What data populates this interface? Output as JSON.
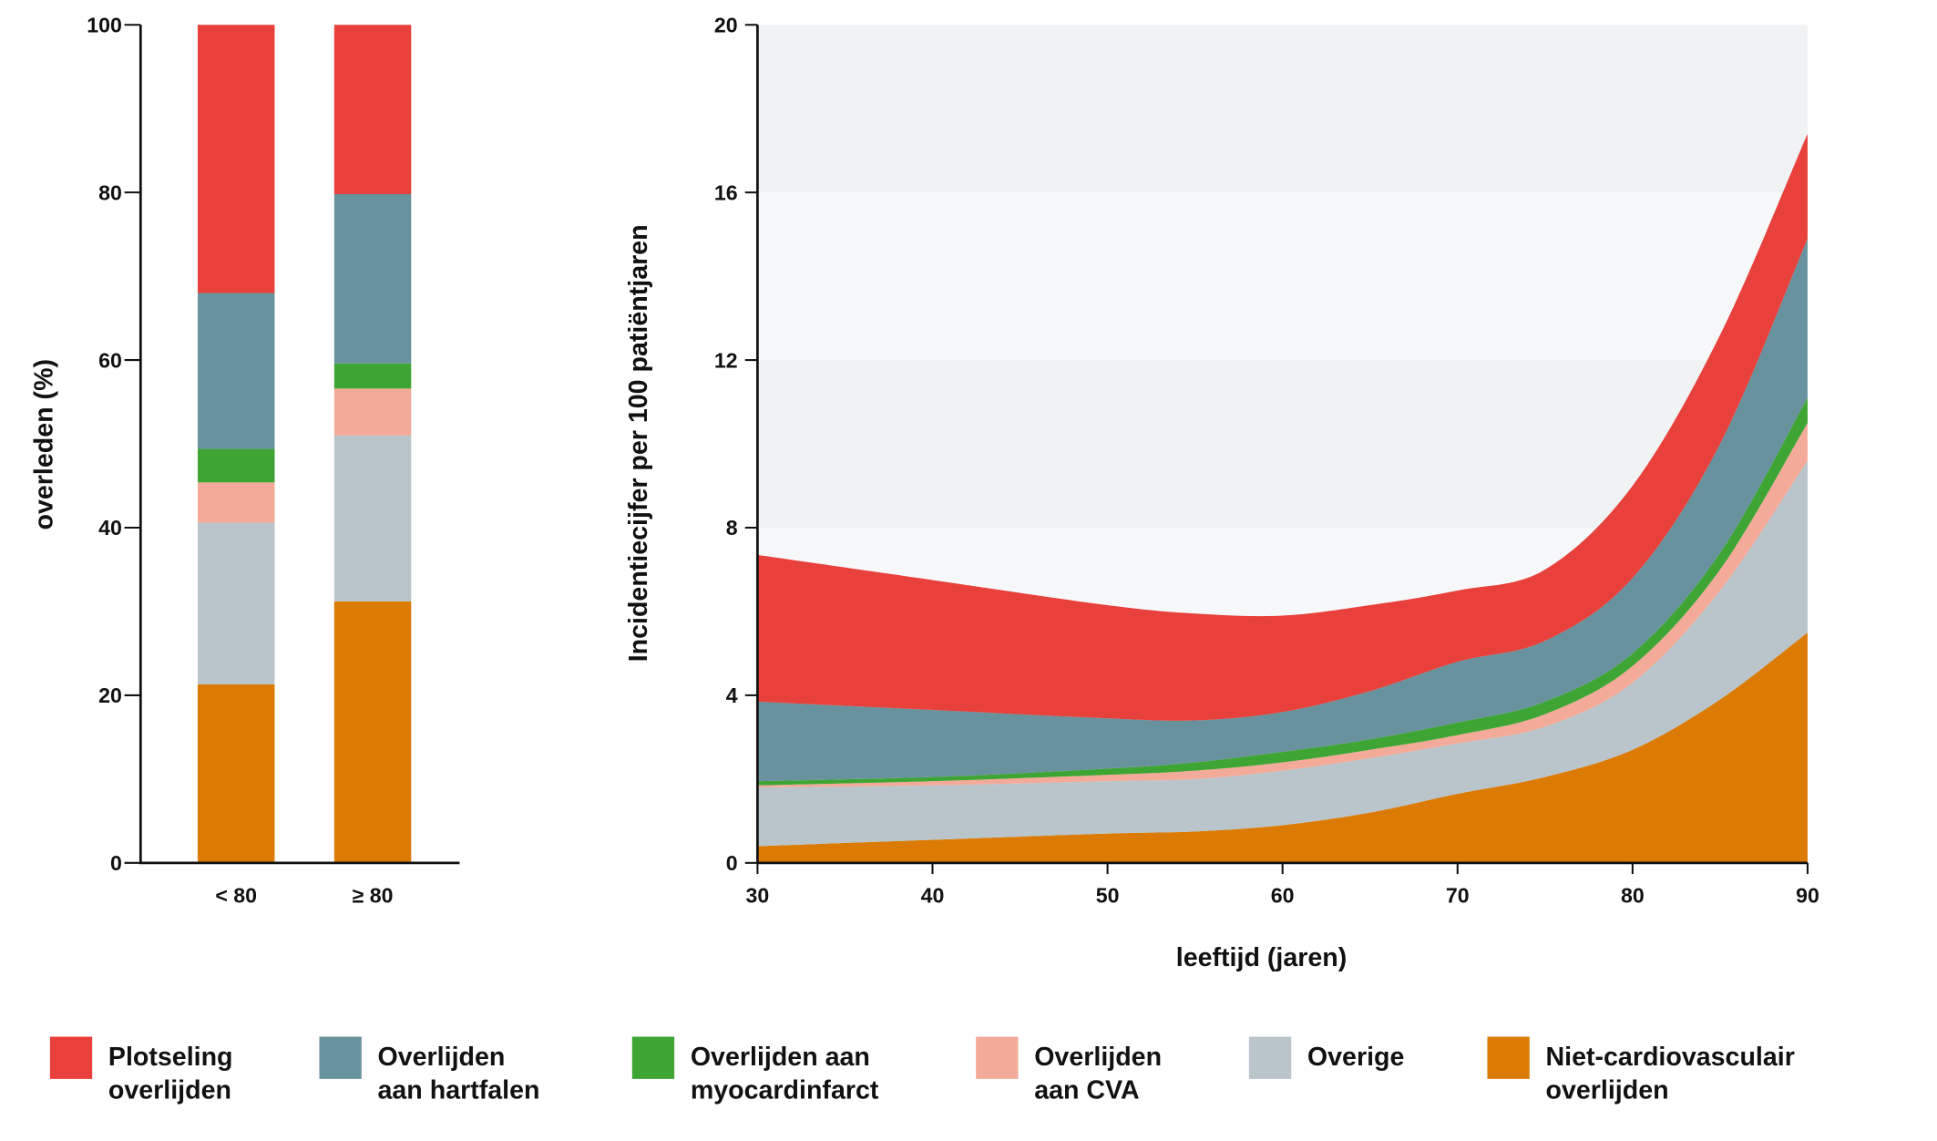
{
  "colors": {
    "sudden": "#e8403a",
    "heart_failure": "#68939e",
    "mi": "#3ea535",
    "cva": "#f4aa98",
    "other": "#b9c5cb",
    "non_cv": "#dc7b04"
  },
  "legend": [
    {
      "key": "sudden",
      "lines": [
        "Plotseling",
        "overlijden"
      ]
    },
    {
      "key": "heart_failure",
      "lines": [
        "Overlijden",
        "aan hartfalen"
      ]
    },
    {
      "key": "mi",
      "lines": [
        "Overlijden aan",
        "myocardinfarct"
      ]
    },
    {
      "key": "cva",
      "lines": [
        "Overlijden",
        "aan CVA"
      ]
    },
    {
      "key": "other",
      "lines": [
        "Overige",
        ""
      ]
    },
    {
      "key": "non_cv",
      "lines": [
        "Niet-cardiovasculair",
        "overlijden"
      ]
    }
  ],
  "chart_data": [
    {
      "type": "bar",
      "stacked": true,
      "ylabel": "overleden (%)",
      "xlabel": "",
      "ylim": [
        0,
        100
      ],
      "yticks": [
        "0",
        "20",
        "40",
        "60",
        "80",
        "100"
      ],
      "categories": [
        "< 80",
        "≥ 80"
      ],
      "series": [
        {
          "key": "non_cv",
          "values": [
            21.3,
            31.2
          ]
        },
        {
          "key": "other",
          "values": [
            19.3,
            19.8
          ]
        },
        {
          "key": "cva",
          "values": [
            4.8,
            5.6
          ]
        },
        {
          "key": "mi",
          "values": [
            4.0,
            3.0
          ]
        },
        {
          "key": "heart_failure",
          "values": [
            18.6,
            20.2
          ]
        },
        {
          "key": "sudden",
          "values": [
            32.0,
            20.2
          ]
        }
      ]
    },
    {
      "type": "area",
      "stacked": true,
      "xlabel": "leeftijd (jaren)",
      "ylabel": "Incidentiecijfer per 100 patiëntjaren",
      "xlim": [
        30,
        90
      ],
      "ylim": [
        0,
        20
      ],
      "xticks": [
        "30",
        "40",
        "50",
        "60",
        "70",
        "80",
        "90"
      ],
      "yticks": [
        "0",
        "4",
        "8",
        "12",
        "16",
        "20"
      ],
      "background_bands": true,
      "x": [
        30,
        40,
        50,
        55,
        60,
        65,
        70,
        75,
        80,
        85,
        90
      ],
      "series": [
        {
          "key": "non_cv",
          "values": [
            0.4,
            0.55,
            0.7,
            0.75,
            0.9,
            1.2,
            1.65,
            2.05,
            2.7,
            3.9,
            5.5
          ]
        },
        {
          "key": "other",
          "values": [
            1.4,
            1.3,
            1.25,
            1.25,
            1.3,
            1.3,
            1.2,
            1.2,
            1.6,
            2.6,
            4.1
          ]
        },
        {
          "key": "cva",
          "values": [
            0.05,
            0.1,
            0.15,
            0.2,
            0.2,
            0.2,
            0.2,
            0.3,
            0.4,
            0.5,
            0.9
          ]
        },
        {
          "key": "mi",
          "values": [
            0.1,
            0.1,
            0.15,
            0.2,
            0.25,
            0.25,
            0.3,
            0.3,
            0.3,
            0.4,
            0.6
          ]
        },
        {
          "key": "heart_failure",
          "values": [
            1.9,
            1.6,
            1.2,
            1.0,
            0.95,
            1.15,
            1.45,
            1.45,
            1.8,
            2.6,
            3.8
          ]
        },
        {
          "key": "sudden",
          "values": [
            3.5,
            3.1,
            2.7,
            2.55,
            2.3,
            2.05,
            1.7,
            1.7,
            2.2,
            2.6,
            2.5
          ]
        }
      ]
    }
  ]
}
